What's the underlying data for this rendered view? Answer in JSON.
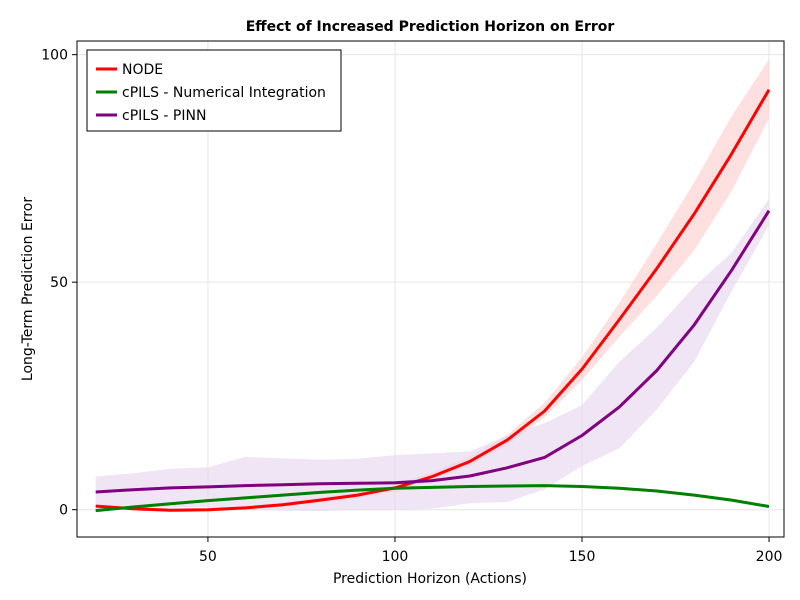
{
  "chart_data": {
    "type": "line",
    "title": "Effect of Increased Prediction Horizon on Error",
    "xlabel": "Prediction Horizon (Actions)",
    "ylabel": "Long-Term Prediction Error",
    "xlim": [
      15,
      204
    ],
    "ylim": [
      -6,
      103
    ],
    "xticks": [
      50,
      100,
      150,
      200
    ],
    "yticks": [
      0,
      50,
      100
    ],
    "grid": true,
    "legend_position": "top-left",
    "x": [
      20,
      30,
      40,
      50,
      60,
      70,
      80,
      90,
      100,
      110,
      120,
      130,
      140,
      150,
      160,
      170,
      180,
      190,
      200
    ],
    "series": [
      {
        "name": "NODE",
        "color": "#ff0000",
        "band_color": "#ffcccc",
        "values": [
          0.8,
          0.2,
          -0.1,
          0.0,
          0.4,
          1.1,
          2.1,
          3.2,
          4.8,
          7.3,
          10.6,
          15.3,
          21.7,
          30.9,
          41.8,
          53.0,
          65.0,
          78.2,
          92.3
        ],
        "lower": [
          0.3,
          -0.2,
          -0.5,
          -0.4,
          0.0,
          0.6,
          1.5,
          2.6,
          4.0,
          6.4,
          9.7,
          14.2,
          20.3,
          28.5,
          38.0,
          47.0,
          57.0,
          70.0,
          86.0
        ],
        "upper": [
          1.3,
          0.6,
          0.3,
          0.4,
          0.8,
          1.6,
          2.7,
          3.8,
          5.6,
          8.2,
          11.6,
          16.4,
          23.5,
          33.5,
          45.5,
          58.5,
          72.0,
          86.5,
          99.0
        ]
      },
      {
        "name": "cPILS - Numerical Integration",
        "color": "#008000",
        "band_color": "#b3e0b3",
        "values": [
          -0.2,
          0.6,
          1.3,
          2.0,
          2.6,
          3.2,
          3.8,
          4.3,
          4.7,
          4.9,
          5.1,
          5.2,
          5.3,
          5.1,
          4.7,
          4.1,
          3.2,
          2.1,
          0.7
        ],
        "lower": [
          -0.5,
          0.3,
          1.0,
          1.7,
          2.3,
          2.9,
          3.5,
          4.0,
          4.4,
          4.6,
          4.8,
          4.9,
          5.0,
          4.8,
          4.4,
          3.8,
          2.9,
          1.8,
          0.4
        ],
        "upper": [
          0.1,
          0.9,
          1.6,
          2.3,
          2.9,
          3.5,
          4.1,
          4.6,
          5.0,
          5.2,
          5.4,
          5.5,
          5.6,
          5.4,
          5.0,
          4.4,
          3.5,
          2.4,
          1.0
        ]
      },
      {
        "name": "cPILS - PINN",
        "color": "#800080",
        "band_color": "#e5d3ec",
        "values": [
          3.9,
          4.4,
          4.8,
          5.0,
          5.3,
          5.5,
          5.7,
          5.8,
          5.9,
          6.4,
          7.4,
          9.2,
          11.5,
          16.3,
          22.6,
          30.6,
          40.6,
          52.6,
          65.7
        ],
        "lower": [
          0.0,
          0.3,
          0.5,
          0.6,
          0.0,
          -0.2,
          -0.3,
          0.0,
          0.0,
          0.2,
          1.4,
          1.7,
          4.5,
          9.6,
          13.5,
          22.0,
          32.5,
          48.0,
          62.5
        ],
        "upper": [
          7.3,
          8.0,
          9.0,
          9.3,
          11.6,
          11.3,
          11.0,
          11.2,
          12.0,
          12.4,
          12.8,
          16.3,
          19.0,
          23.0,
          32.5,
          40.0,
          49.0,
          56.5,
          68.3
        ]
      }
    ]
  }
}
